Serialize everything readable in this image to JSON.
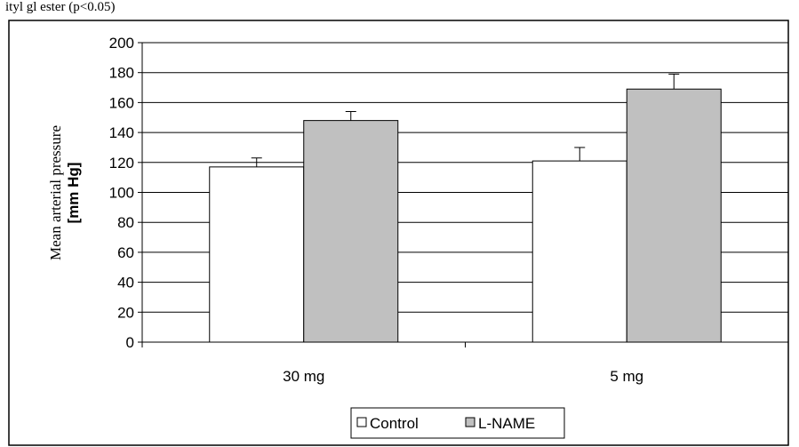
{
  "header_text": "ityl gl ester (p<0.05)",
  "chart_data": {
    "type": "bar",
    "categories": [
      "30 mg",
      "5 mg"
    ],
    "series": [
      {
        "name": "Control",
        "values": [
          117,
          121
        ],
        "errors": [
          6,
          9
        ],
        "color": "#ffffff"
      },
      {
        "name": "L-NAME",
        "values": [
          148,
          169
        ],
        "errors": [
          6,
          10
        ],
        "color": "#c0c0c0"
      }
    ],
    "ylim": [
      0,
      200
    ],
    "yticks": [
      "0",
      "20",
      "40",
      "60",
      "80",
      "100",
      "120",
      "140",
      "160",
      "180",
      "200"
    ],
    "ylabel": {
      "line1": "Mean arterial pressure",
      "line2": "[mm Hg]"
    },
    "xlabel": "",
    "title": "",
    "grid": true,
    "legend_position": "bottom"
  }
}
